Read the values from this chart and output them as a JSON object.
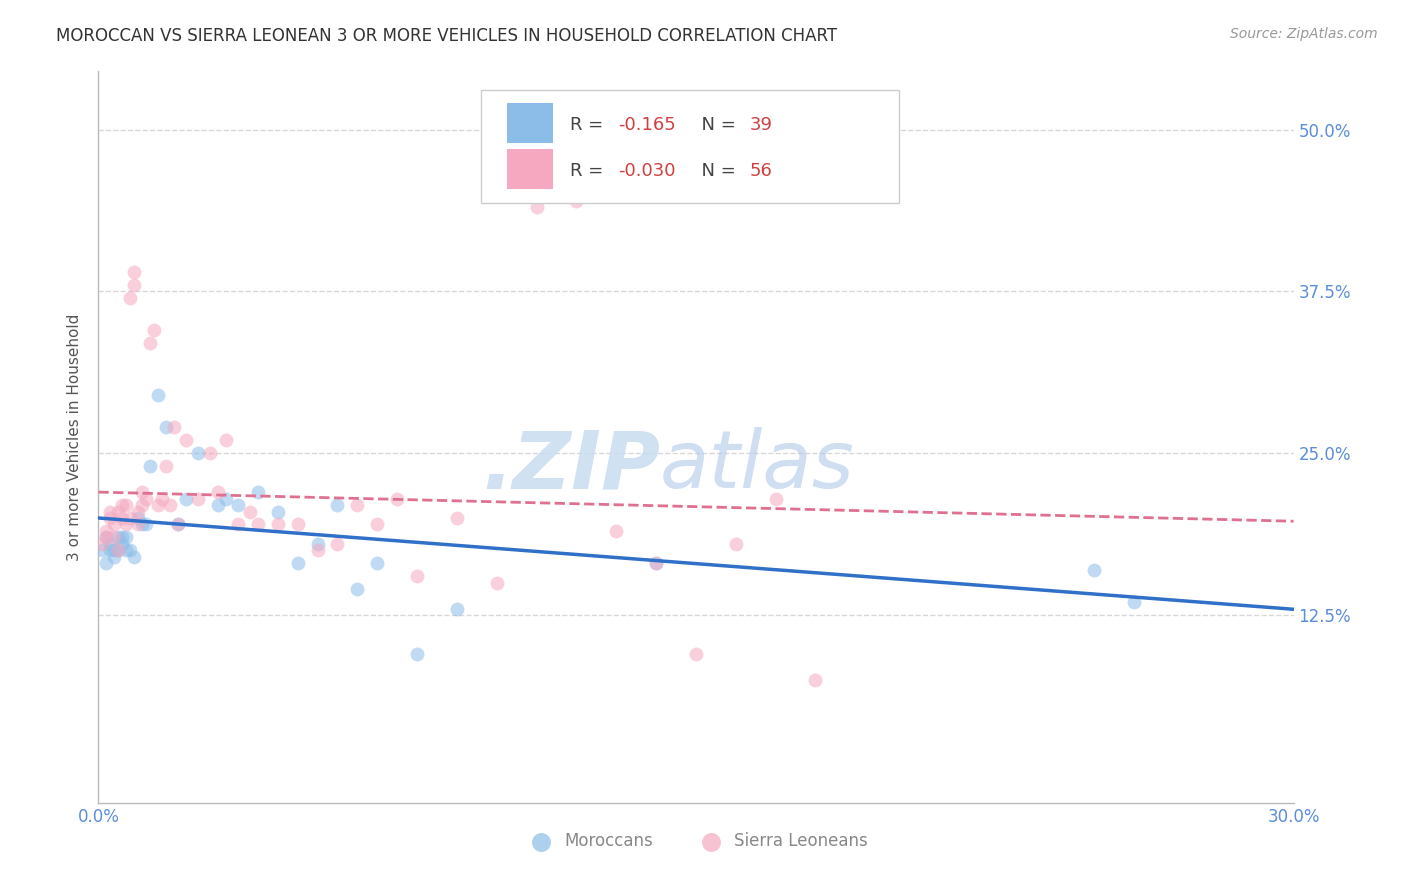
{
  "title": "MOROCCAN VS SIERRA LEONEAN 3 OR MORE VEHICLES IN HOUSEHOLD CORRELATION CHART",
  "source": "Source: ZipAtlas.com",
  "ylabel": "3 or more Vehicles in Household",
  "xlabel": "",
  "xlim": [
    0.0,
    0.3
  ],
  "ylim": [
    -0.02,
    0.545
  ],
  "yticks": [
    0.125,
    0.25,
    0.375,
    0.5
  ],
  "ytick_labels": [
    "12.5%",
    "25.0%",
    "37.5%",
    "50.0%"
  ],
  "xticks": [
    0.0,
    0.05,
    0.1,
    0.15,
    0.2,
    0.25,
    0.3
  ],
  "xtick_labels": [
    "0.0%",
    "",
    "",
    "",
    "",
    "",
    "30.0%"
  ],
  "moroccans_x": [
    0.001,
    0.002,
    0.002,
    0.003,
    0.003,
    0.004,
    0.004,
    0.005,
    0.005,
    0.006,
    0.006,
    0.007,
    0.007,
    0.008,
    0.009,
    0.01,
    0.011,
    0.012,
    0.013,
    0.015,
    0.017,
    0.02,
    0.022,
    0.025,
    0.03,
    0.032,
    0.035,
    0.04,
    0.045,
    0.05,
    0.055,
    0.06,
    0.065,
    0.07,
    0.08,
    0.09,
    0.14,
    0.25,
    0.26
  ],
  "moroccans_y": [
    0.175,
    0.185,
    0.165,
    0.175,
    0.18,
    0.175,
    0.17,
    0.185,
    0.175,
    0.185,
    0.18,
    0.175,
    0.185,
    0.175,
    0.17,
    0.2,
    0.195,
    0.195,
    0.24,
    0.295,
    0.27,
    0.195,
    0.215,
    0.25,
    0.21,
    0.215,
    0.21,
    0.22,
    0.205,
    0.165,
    0.18,
    0.21,
    0.145,
    0.165,
    0.095,
    0.13,
    0.165,
    0.16,
    0.135
  ],
  "sierraleoneans_x": [
    0.001,
    0.002,
    0.002,
    0.003,
    0.003,
    0.004,
    0.004,
    0.005,
    0.005,
    0.006,
    0.006,
    0.007,
    0.007,
    0.008,
    0.008,
    0.009,
    0.009,
    0.01,
    0.01,
    0.011,
    0.011,
    0.012,
    0.013,
    0.014,
    0.015,
    0.016,
    0.017,
    0.018,
    0.019,
    0.02,
    0.022,
    0.025,
    0.028,
    0.03,
    0.032,
    0.035,
    0.038,
    0.04,
    0.045,
    0.05,
    0.055,
    0.06,
    0.065,
    0.07,
    0.075,
    0.08,
    0.09,
    0.1,
    0.11,
    0.12,
    0.13,
    0.14,
    0.15,
    0.16,
    0.17,
    0.18
  ],
  "sierraleoneans_y": [
    0.18,
    0.185,
    0.19,
    0.2,
    0.205,
    0.195,
    0.185,
    0.205,
    0.175,
    0.2,
    0.21,
    0.195,
    0.21,
    0.2,
    0.37,
    0.38,
    0.39,
    0.195,
    0.205,
    0.21,
    0.22,
    0.215,
    0.335,
    0.345,
    0.21,
    0.215,
    0.24,
    0.21,
    0.27,
    0.195,
    0.26,
    0.215,
    0.25,
    0.22,
    0.26,
    0.195,
    0.205,
    0.195,
    0.195,
    0.195,
    0.175,
    0.18,
    0.21,
    0.195,
    0.215,
    0.155,
    0.2,
    0.15,
    0.44,
    0.445,
    0.19,
    0.165,
    0.095,
    0.18,
    0.215,
    0.075
  ],
  "moroccan_color": "#8BBDE8",
  "sierraleone_color": "#F5A8C0",
  "moroccan_line_color": "#3070C8",
  "sierraleone_line_color": "#E07090",
  "watermark_zip_color": "#C8DCF0",
  "watermark_atlas_color": "#B0C8E8",
  "background_color": "#ffffff",
  "grid_color": "#d8d8d8",
  "title_color": "#333333",
  "axis_label_color": "#555555",
  "right_tick_color": "#5B8DD9",
  "marker_size": 10,
  "marker_alpha": 0.55,
  "figsize": [
    14.06,
    8.92
  ],
  "dpi": 100
}
